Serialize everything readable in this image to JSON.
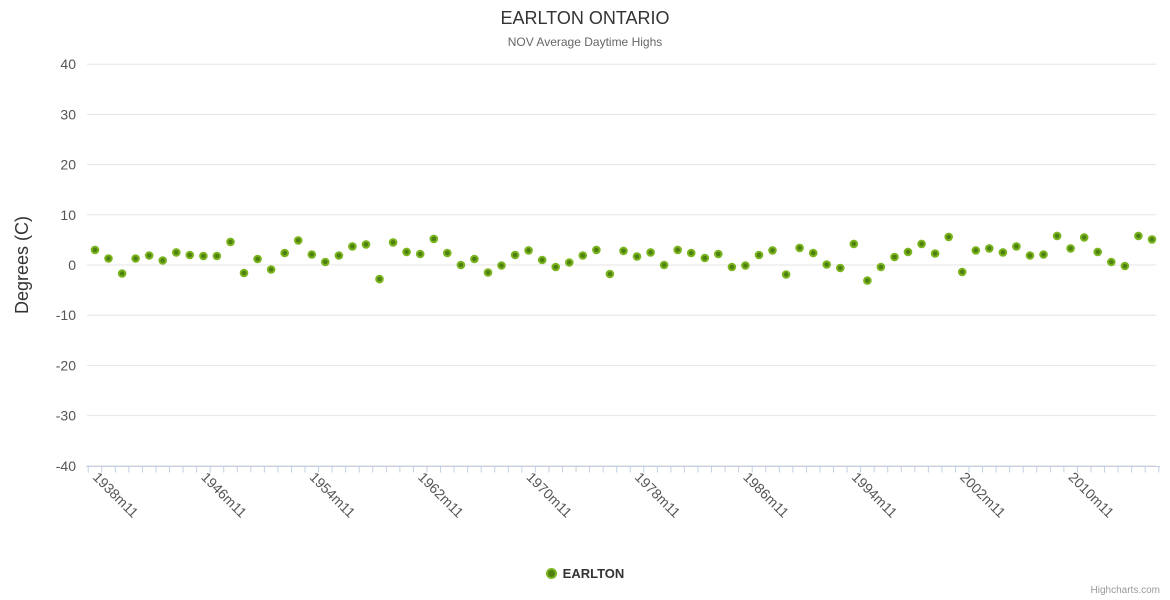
{
  "title": "EARLTON ONTARIO",
  "subtitle": "NOV Average Daytime Highs",
  "credits": "Highcharts.com",
  "legend": {
    "label": "EARLTON"
  },
  "chart_data": {
    "type": "scatter",
    "title": "EARLTON ONTARIO",
    "subtitle": "NOV Average Daytime Highs",
    "xlabel": "",
    "ylabel": "Degrees (C)",
    "ylim": [
      -40,
      40
    ],
    "y_ticks": [
      40,
      30,
      20,
      10,
      0,
      -10,
      -20,
      -30,
      -40
    ],
    "x_tick_labels": [
      "1938m11",
      "1946m11",
      "1954m11",
      "1962m11",
      "1970m11",
      "1978m11",
      "1986m11",
      "1994m11",
      "2002m11",
      "2010m11"
    ],
    "grid": true,
    "legend_position": "bottom-center",
    "colors": {
      "marker_fill": "#4e7f10",
      "marker_stroke": "#7ab520",
      "grid_line": "#e6e6e6",
      "axis_line": "#c0d0e0",
      "axis_label": "#555555",
      "title": "#333333",
      "subtitle": "#666666",
      "credits": "#999999"
    },
    "series": [
      {
        "name": "EARLTON",
        "start_year": 1938,
        "x_suffix": "m11",
        "values": [
          3.0,
          1.3,
          -1.7,
          1.3,
          1.9,
          0.9,
          2.5,
          2.0,
          1.8,
          1.8,
          4.6,
          -1.6,
          1.2,
          -0.9,
          2.4,
          4.9,
          2.1,
          0.6,
          1.9,
          3.7,
          4.1,
          -2.8,
          4.5,
          2.6,
          2.2,
          5.2,
          2.4,
          0.0,
          1.2,
          -1.5,
          -0.1,
          2.0,
          2.9,
          1.0,
          -0.4,
          0.5,
          1.9,
          3.0,
          -1.8,
          2.8,
          1.7,
          2.5,
          0.0,
          3.0,
          2.4,
          1.4,
          2.2,
          -0.4,
          -0.1,
          2.0,
          2.9,
          -1.9,
          3.4,
          2.4,
          0.1,
          -0.6,
          4.2,
          -3.1,
          -0.4,
          1.6,
          2.6,
          4.2,
          2.3,
          5.6,
          -1.4,
          2.9,
          3.3,
          2.5,
          3.7,
          1.9,
          2.1,
          5.8,
          3.3,
          5.5,
          2.6,
          0.6,
          -0.2,
          5.8,
          5.1
        ]
      }
    ]
  }
}
